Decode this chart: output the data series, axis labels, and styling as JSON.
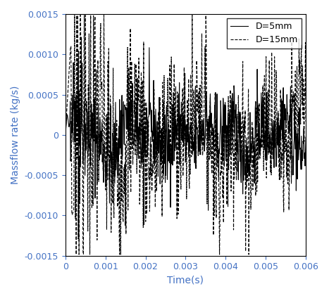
{
  "title": "",
  "xlabel": "Time(s)",
  "ylabel": "Massflow rate (kg/s)",
  "xlim": [
    0,
    0.006
  ],
  "ylim": [
    -0.0015,
    0.0015
  ],
  "xticks": [
    0,
    0.001,
    0.002,
    0.003,
    0.004,
    0.005,
    0.006
  ],
  "yticks": [
    -0.0015,
    -0.001,
    -0.0005,
    0,
    0.0005,
    0.001,
    0.0015
  ],
  "legend_labels": [
    "D=5mm",
    "D=15mm"
  ],
  "legend_linestyles": [
    "-",
    "--"
  ],
  "line_color": "black",
  "tick_color": "#4472C4",
  "label_color": "#4472C4",
  "seed_d5": 42,
  "seed_d15": 7,
  "n_points": 600,
  "d5_amplitude": 0.00035,
  "d15_amplitude": 0.00055,
  "d15_initial_spike": 0.0011,
  "d5_initial_spike": 0.00025,
  "background_color": "white"
}
